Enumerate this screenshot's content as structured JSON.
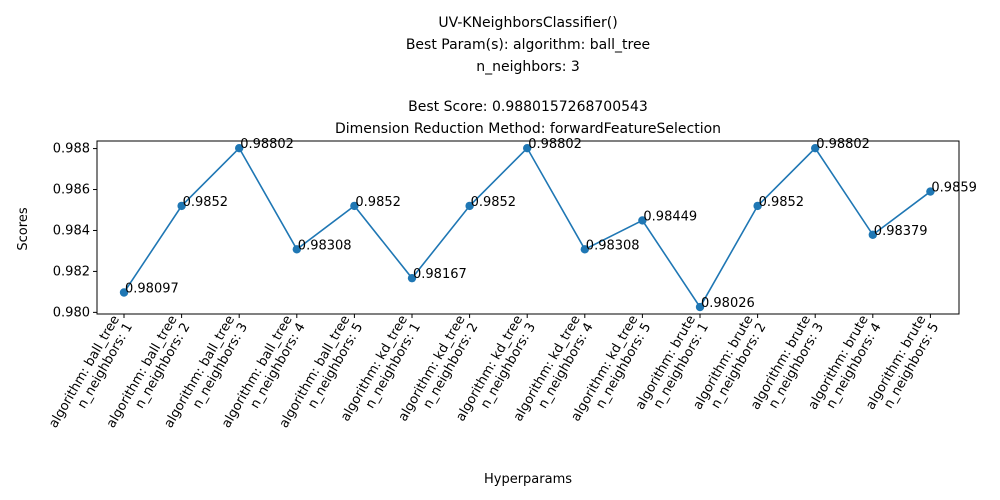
{
  "chart_data": {
    "type": "line",
    "title_lines": [
      "UV-KNeighborsClassifier()",
      "Best Param(s): algorithm: ball_tree",
      "n_neighbors: 3",
      "",
      "Best Score: 0.9880157268700543",
      "Dimension Reduction Method: forwardFeatureSelection"
    ],
    "xlabel": "Hyperparams",
    "ylabel": "Scores",
    "categories": [
      [
        "algorithm: ball_tree",
        "n_neighbors: 1"
      ],
      [
        "algorithm: ball_tree",
        "n_neighbors: 2"
      ],
      [
        "algorithm: ball_tree",
        "n_neighbors: 3"
      ],
      [
        "algorithm: ball_tree",
        "n_neighbors: 4"
      ],
      [
        "algorithm: ball_tree",
        "n_neighbors: 5"
      ],
      [
        "algorithm: kd_tree",
        "n_neighbors: 1"
      ],
      [
        "algorithm: kd_tree",
        "n_neighbors: 2"
      ],
      [
        "algorithm: kd_tree",
        "n_neighbors: 3"
      ],
      [
        "algorithm: kd_tree",
        "n_neighbors: 4"
      ],
      [
        "algorithm: kd_tree",
        "n_neighbors: 5"
      ],
      [
        "algorithm: brute",
        "n_neighbors: 1"
      ],
      [
        "algorithm: brute",
        "n_neighbors: 2"
      ],
      [
        "algorithm: brute",
        "n_neighbors: 3"
      ],
      [
        "algorithm: brute",
        "n_neighbors: 4"
      ],
      [
        "algorithm: brute",
        "n_neighbors: 5"
      ]
    ],
    "values": [
      0.98097,
      0.9852,
      0.98802,
      0.98308,
      0.9852,
      0.98167,
      0.9852,
      0.98802,
      0.98308,
      0.98449,
      0.98026,
      0.9852,
      0.98802,
      0.98379,
      0.9859
    ],
    "point_labels": [
      "0.98097",
      "0.9852",
      "0.98802",
      "0.98308",
      "0.9852",
      "0.98167",
      "0.9852",
      "0.98802",
      "0.98308",
      "0.98449",
      "0.98026",
      "0.9852",
      "0.98802",
      "0.98379",
      "0.9859"
    ],
    "yticks": [
      "0.980",
      "0.982",
      "0.984",
      "0.986",
      "0.988"
    ],
    "ytick_values": [
      0.98,
      0.982,
      0.984,
      0.986,
      0.988
    ],
    "ylim": [
      0.97992,
      0.98837
    ],
    "grid": false,
    "line_color": "#1f77b4"
  }
}
